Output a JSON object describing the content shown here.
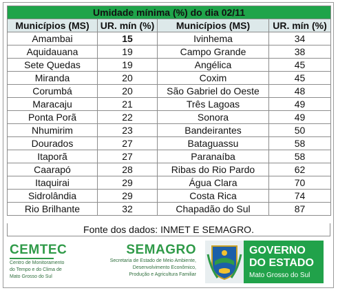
{
  "table": {
    "title": "Umidade mínima (%) do dia 02/11",
    "headers": [
      "Municípios (MS)",
      "UR. mín (%)",
      "Municípios (MS)",
      "UR. mín (%)"
    ],
    "rows": [
      [
        "Amambai",
        "15",
        "Ivinhema",
        "34"
      ],
      [
        "Aquidauana",
        "19",
        "Campo Grande",
        "38"
      ],
      [
        "Sete Quedas",
        "19",
        "Angélica",
        "45"
      ],
      [
        "Miranda",
        "20",
        "Coxim",
        "45"
      ],
      [
        "Corumbá",
        "20",
        "São Gabriel do Oeste",
        "48"
      ],
      [
        "Maracaju",
        "21",
        "Três Lagoas",
        "49"
      ],
      [
        "Ponta Porã",
        "22",
        "Sonora",
        "49"
      ],
      [
        "Nhumirim",
        "23",
        "Bandeirantes",
        "50"
      ],
      [
        "Dourados",
        "27",
        "Bataguassu",
        "58"
      ],
      [
        "Itaporã",
        "27",
        "Paranaíba",
        "58"
      ],
      [
        "Caarapó",
        "28",
        "Ribas do Rio Pardo",
        "62"
      ],
      [
        "Itaquirai",
        "29",
        "Água Clara",
        "70"
      ],
      [
        "Sidrolândia",
        "29",
        "Costa Rica",
        "74"
      ],
      [
        "Rio Brilhante",
        "32",
        "Chapadão do Sul",
        "87"
      ]
    ],
    "source": "Fonte dos dados: INMET E SEMAGRO."
  },
  "colors": {
    "title_bg": "#1fa44a",
    "header_bg": "#dde9ea",
    "highlight": "#e0261e",
    "brand_green": "#2f9a48"
  },
  "logos": {
    "cemtec": {
      "name": "CEMTEC",
      "lines": [
        "Centro de Monitoramento",
        "do Tempo e do Clima de",
        "Mato Grosso do Sul"
      ]
    },
    "semagro": {
      "name": "SEMAGRO",
      "lines": [
        "Secretaria de Estado de Meio Ambiente,",
        "Desenvolvimento Econômico,",
        "Produção e Agricultura Familiar"
      ]
    },
    "governo": {
      "line1": "GOVERNO",
      "line2": "DO ESTADO",
      "line3": "Mato Grosso do Sul"
    },
    "crest_icon": "state-coat-of-arms-icon"
  }
}
